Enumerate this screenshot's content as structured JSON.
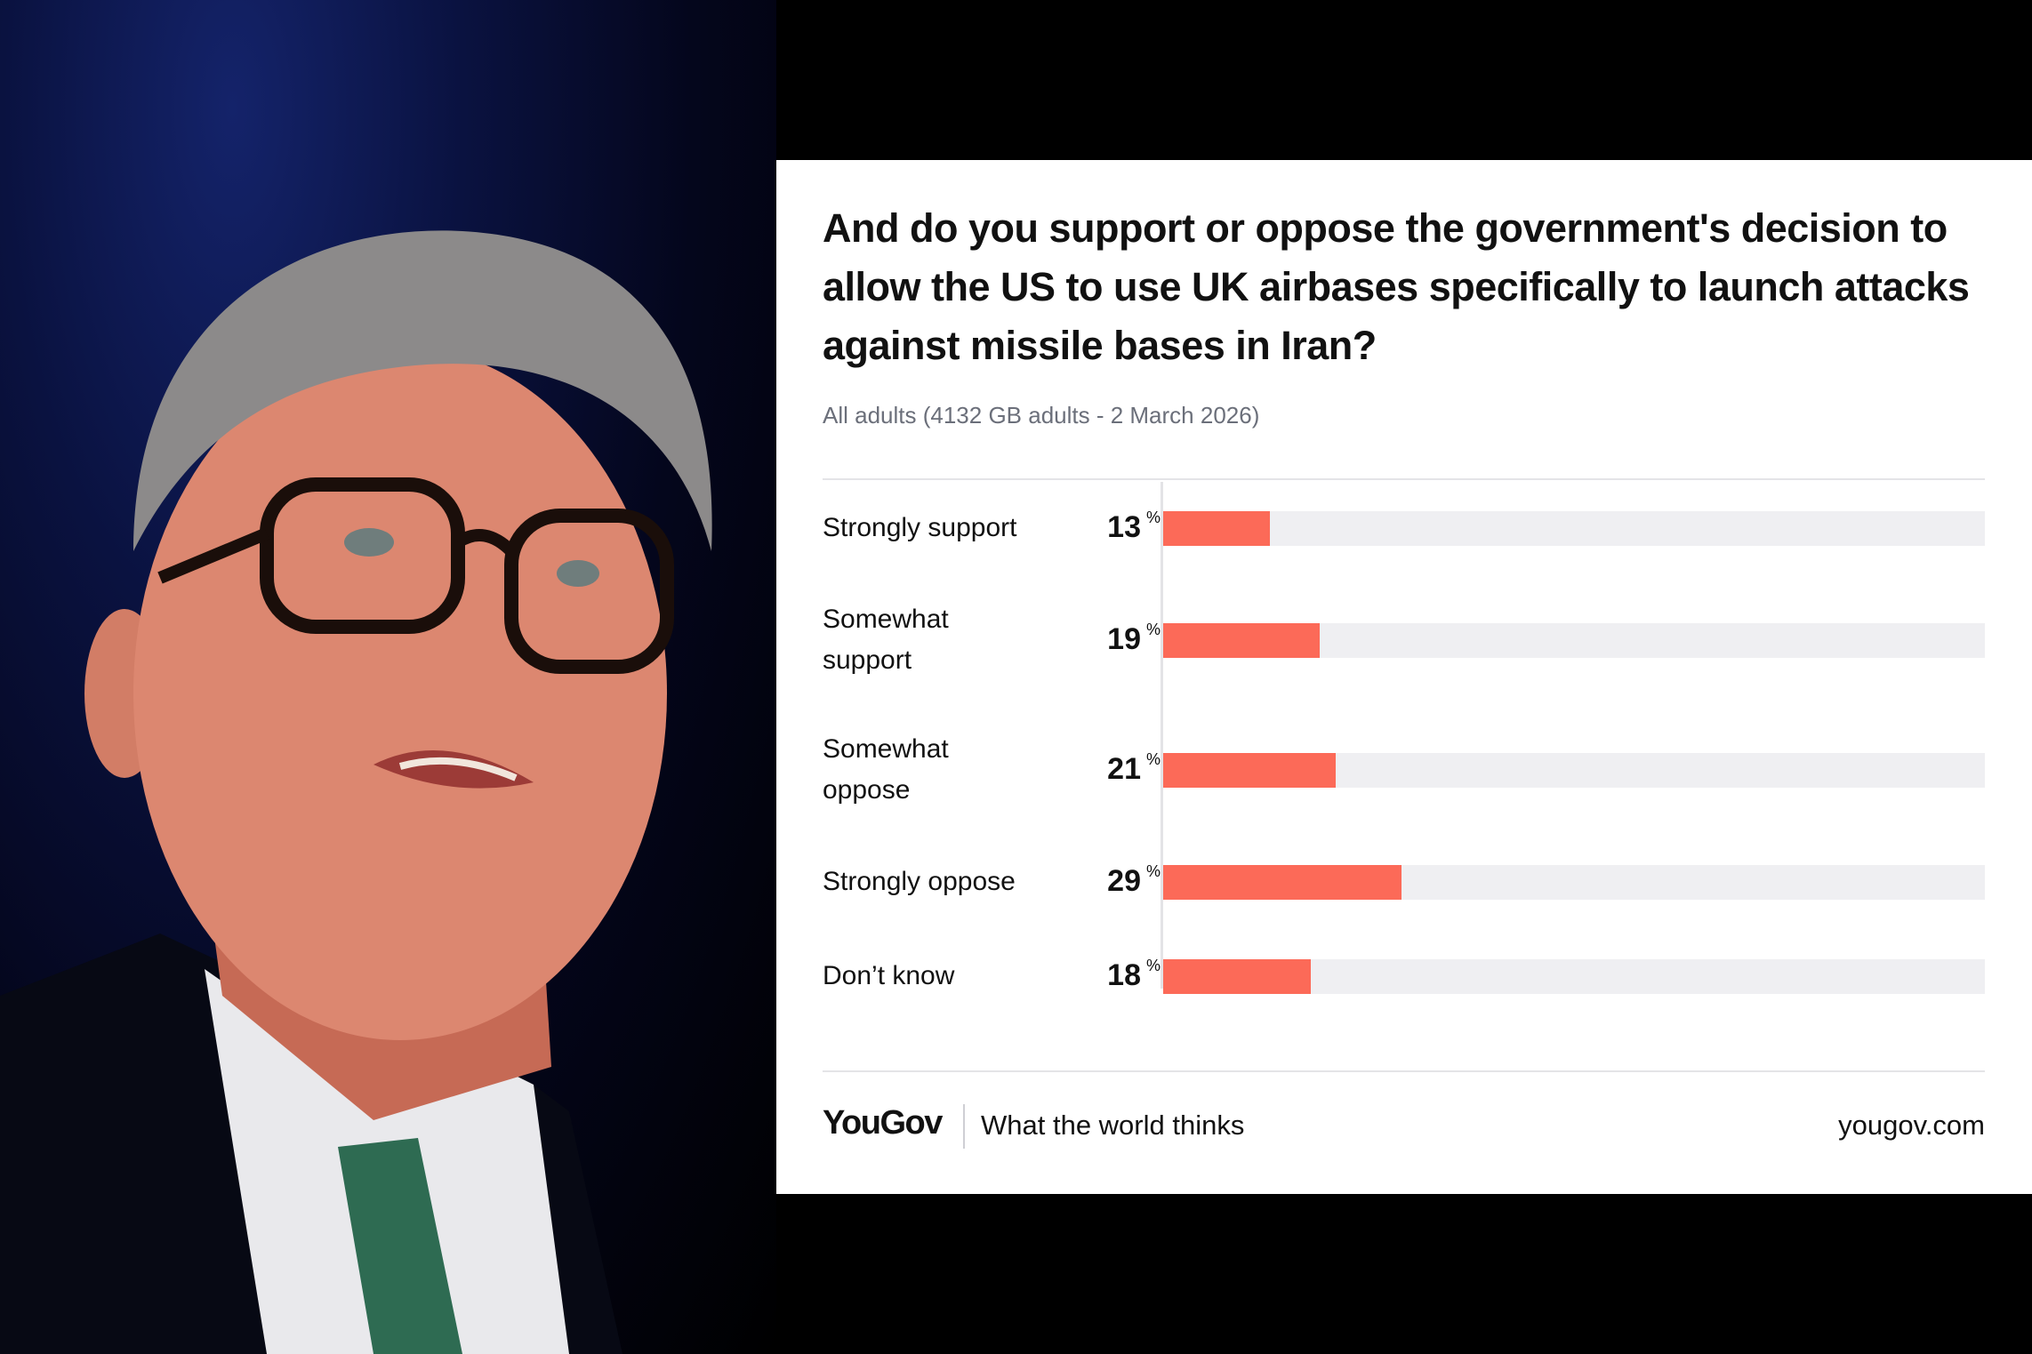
{
  "photo": {
    "description_icon": "person-photo"
  },
  "card": {
    "footer": {
      "brand": "YouGov",
      "tagline": "What the world thinks",
      "site": "yougov.com"
    }
  },
  "chart_data": {
    "type": "bar",
    "orientation": "horizontal",
    "title": "And do you support or oppose the government's decision to allow the US to use UK airbases specifically to launch attacks against missile bases in Iran?",
    "subtitle": "All adults (4132 GB adults - 2 March 2026)",
    "categories": [
      "Strongly support",
      "Somewhat support",
      "Somewhat oppose",
      "Strongly oppose",
      "Don’t know"
    ],
    "values": [
      13,
      19,
      21,
      29,
      18
    ],
    "unit": "%",
    "xlim": [
      0,
      100
    ],
    "bar_color": "#fc6a58",
    "track_color": "#efeff2",
    "grid": false,
    "legend": "none"
  }
}
